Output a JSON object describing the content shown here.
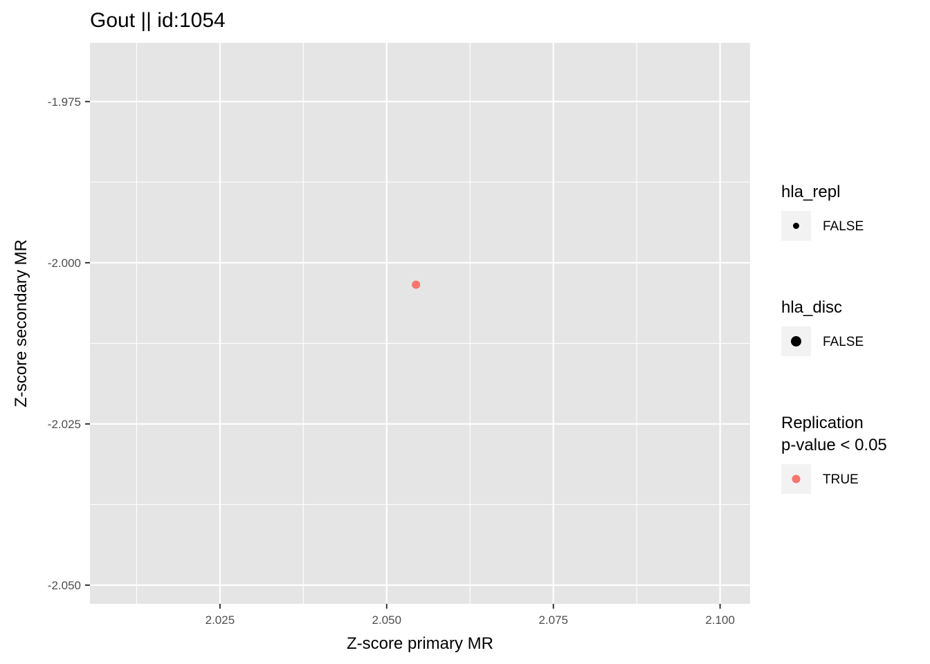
{
  "chart_data": {
    "type": "scatter",
    "title": "Gout || id:1054",
    "xlabel": "Z-score primary MR",
    "ylabel": "Z-score secondary MR",
    "xlim": [
      2.0055,
      2.1045
    ],
    "ylim": [
      -2.0529,
      -1.9659
    ],
    "x_ticks": [
      2.025,
      2.05,
      2.075,
      2.1
    ],
    "x_tick_labels": [
      "2.025",
      "2.050",
      "2.075",
      "2.100"
    ],
    "y_ticks": [
      -1.975,
      -2.0,
      -2.025,
      -2.05
    ],
    "y_tick_labels": [
      "-1.975",
      "-2.000",
      "-2.025",
      "-2.050"
    ],
    "grid": true,
    "points": [
      {
        "x": 2.0544,
        "y": -2.0034,
        "hla_repl": "FALSE",
        "hla_disc": "FALSE",
        "replication": "TRUE",
        "color": "#F8766D"
      }
    ],
    "legend": {
      "position": "right",
      "groups": [
        {
          "title": "hla_repl",
          "entries": [
            {
              "label": "FALSE",
              "color": "#000000",
              "size": "small"
            }
          ]
        },
        {
          "title": "hla_disc",
          "entries": [
            {
              "label": "FALSE",
              "color": "#000000",
              "size": "large"
            }
          ]
        },
        {
          "title": [
            "Replication",
            "p-value < 0.05"
          ],
          "entries": [
            {
              "label": "TRUE",
              "color": "#F8766D",
              "size": "medium"
            }
          ]
        }
      ]
    },
    "colors": {
      "panel": "#E5E5E5",
      "grid": "#FFFFFF",
      "point": "#F8766D",
      "tick": "#4D4D4D"
    }
  }
}
